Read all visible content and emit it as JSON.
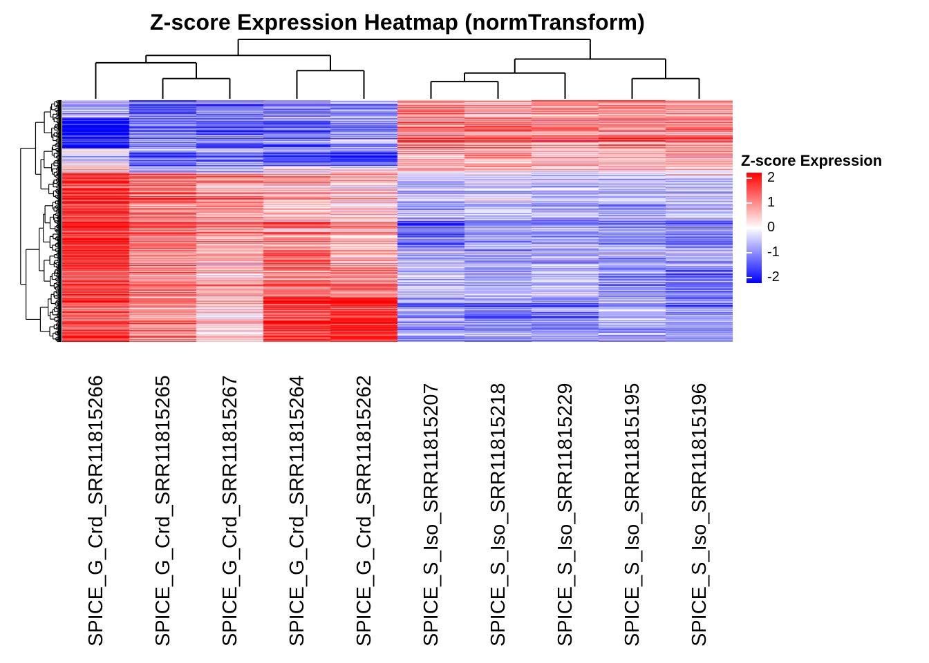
{
  "chart_data": {
    "type": "heatmap",
    "title": "Z-score Expression Heatmap (normTransform)",
    "columns": [
      "SPICE_G_Crd_SRR11815266",
      "SPICE_G_Crd_SRR11815265",
      "SPICE_G_Crd_SRR11815267",
      "SPICE_G_Crd_SRR11815264",
      "SPICE_G_Crd_SRR11815262",
      "SPICE_S_Iso_SRR11815207",
      "SPICE_S_Iso_SRR11815218",
      "SPICE_S_Iso_SRR11815229",
      "SPICE_S_Iso_SRR11815195",
      "SPICE_S_Iso_SRR11815196"
    ],
    "column_groups": [
      "Crd",
      "Crd",
      "Crd",
      "Crd",
      "Crd",
      "Iso",
      "Iso",
      "Iso",
      "Iso",
      "Iso"
    ],
    "legend": {
      "title": "Z-score Expression",
      "ticks": [
        2,
        1,
        0,
        -1,
        -2
      ],
      "range": [
        -2,
        2
      ],
      "color_high": "#FF0000",
      "color_mid": "#FFFFFF",
      "color_low": "#0000FF"
    },
    "n_rows": 350,
    "row_segments": [
      {
        "rows": [
          0,
          25
        ],
        "means": [
          -0.3,
          -1.1,
          -0.9,
          -0.7,
          -0.6,
          0.9,
          0.7,
          0.8,
          0.9,
          0.8
        ]
      },
      {
        "rows": [
          25,
          70
        ],
        "means": [
          -1.9,
          -1.0,
          -1.2,
          -1.1,
          -0.8,
          1.0,
          1.1,
          0.8,
          0.9,
          0.9
        ]
      },
      {
        "rows": [
          70,
          95
        ],
        "means": [
          -0.2,
          -1.2,
          -0.8,
          -1.1,
          -1.5,
          0.7,
          0.9,
          0.6,
          0.7,
          0.8
        ]
      },
      {
        "rows": [
          95,
          105
        ],
        "means": [
          0.3,
          -0.9,
          -0.6,
          -0.2,
          -0.1,
          0.5,
          0.6,
          0.4,
          0.3,
          0.4
        ]
      },
      {
        "rows": [
          105,
          175
        ],
        "means": [
          1.6,
          1.2,
          0.9,
          0.6,
          0.4,
          -0.5,
          -0.4,
          -0.5,
          -0.6,
          -0.5
        ]
      },
      {
        "rows": [
          175,
          215
        ],
        "means": [
          1.7,
          1.1,
          0.8,
          0.9,
          0.5,
          -1.2,
          -0.7,
          -0.7,
          -0.8,
          -1.0
        ]
      },
      {
        "rows": [
          215,
          240
        ],
        "means": [
          1.8,
          1.0,
          0.7,
          1.3,
          0.6,
          -0.7,
          -0.7,
          -0.8,
          -0.7,
          -0.7
        ]
      },
      {
        "rows": [
          240,
          285
        ],
        "means": [
          1.5,
          1.0,
          0.6,
          1.1,
          1.0,
          -0.5,
          -0.6,
          -0.5,
          -0.9,
          -1.1
        ]
      },
      {
        "rows": [
          285,
          350
        ],
        "means": [
          1.4,
          0.9,
          0.3,
          1.6,
          1.7,
          -0.8,
          -0.9,
          -0.9,
          -0.6,
          -0.8
        ]
      }
    ],
    "noise": {
      "seed": 20,
      "row_sd": 0.38,
      "cell_sd": 0.32
    },
    "col_tree": {
      "h": 0.954,
      "c": [
        {
          "h": 0.69,
          "c": [
            {
              "h": 0.57,
              "c": [
                {
                  "leaf": 0
                },
                {
                  "h": 0.31,
                  "c": [
                    {
                      "leaf": 1
                    },
                    {
                      "leaf": 2
                    }
                  ]
                }
              ]
            },
            {
              "h": 0.44,
              "c": [
                {
                  "leaf": 3
                },
                {
                  "leaf": 4
                }
              ]
            }
          ]
        },
        {
          "h": 0.63,
          "c": [
            {
              "h": 0.4,
              "c": [
                {
                  "h": 0.26,
                  "c": [
                    {
                      "leaf": 5
                    },
                    {
                      "leaf": 6
                    }
                  ]
                },
                {
                  "leaf": 7
                }
              ]
            },
            {
              "h": 0.31,
              "c": [
                {
                  "leaf": 8
                },
                {
                  "leaf": 9
                }
              ]
            }
          ]
        }
      ]
    }
  }
}
